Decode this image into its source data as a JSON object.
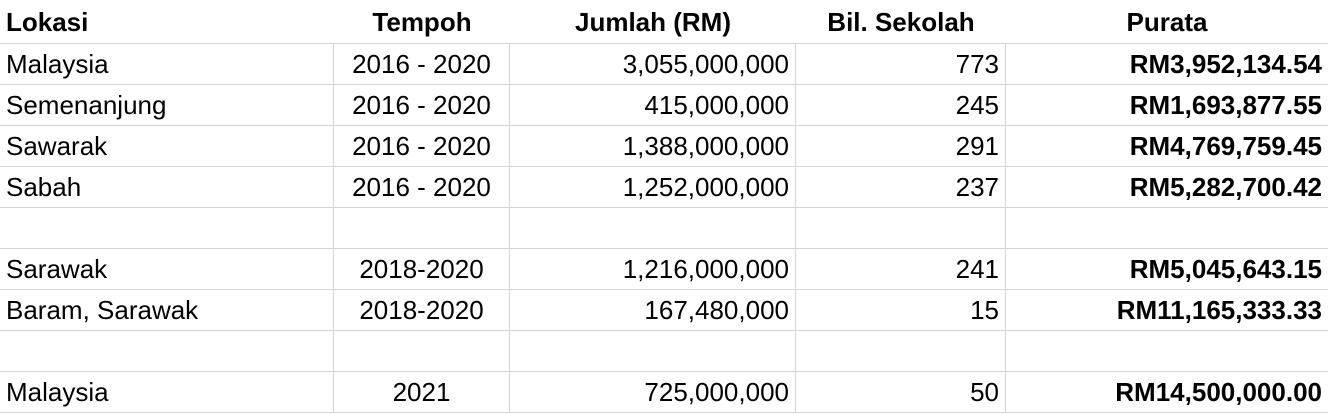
{
  "table": {
    "headers": [
      "Lokasi",
      "Tempoh",
      "Jumlah (RM)",
      "Bil. Sekolah",
      "Purata"
    ],
    "rows": [
      [
        "Malaysia",
        "2016 - 2020",
        "3,055,000,000",
        "773",
        "RM3,952,134.54"
      ],
      [
        "Semenanjung",
        "2016 - 2020",
        "415,000,000",
        "245",
        "RM1,693,877.55"
      ],
      [
        "Sawarak",
        "2016 - 2020",
        "1,388,000,000",
        "291",
        "RM4,769,759.45"
      ],
      [
        "Sabah",
        "2016 - 2020",
        "1,252,000,000",
        "237",
        "RM5,282,700.42"
      ],
      [
        "",
        "",
        "",
        "",
        ""
      ],
      [
        "Sarawak",
        "2018-2020",
        "1,216,000,000",
        "241",
        "RM5,045,643.15"
      ],
      [
        "Baram, Sarawak",
        "2018-2020",
        "167,480,000",
        "15",
        "RM11,165,333.33"
      ],
      [
        "",
        "",
        "",
        "",
        ""
      ],
      [
        "Malaysia",
        "2021",
        "725,000,000",
        "50",
        "RM14,500,000.00"
      ]
    ]
  }
}
